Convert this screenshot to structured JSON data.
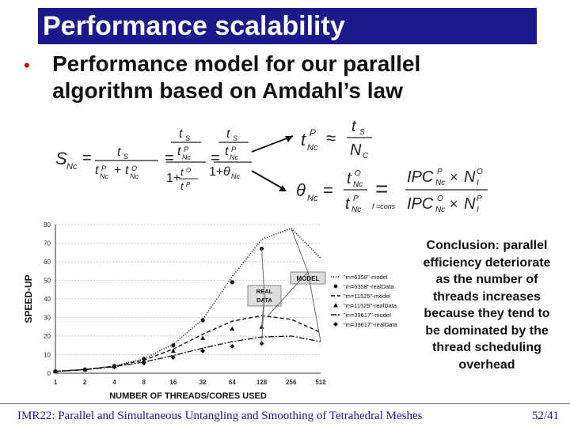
{
  "slide": {
    "title": "Performance scalability",
    "bullet": "Performance model for our parallel algorithm based on Amdahl’s law",
    "conclusion": "Conclusion: parallel efficiency deteriorate as the number of threads increases because they tend to be dominated by the thread scheduling overhead",
    "footer": "IMR22: Parallel and Simultaneous Untangling and Smoothing of Tetrahedral Meshes",
    "page": "52/41"
  },
  "colors": {
    "title_bg": "#1a1a8c",
    "bullet": "#cc0000",
    "footer": "#1a1a8c"
  },
  "chart_data": {
    "type": "line",
    "xlabel": "NUMBER OF THREADS/CORES USED",
    "ylabel": "SPEED-UP",
    "categories": [
      "1",
      "2",
      "4",
      "8",
      "16",
      "32",
      "64",
      "128",
      "256",
      "512"
    ],
    "ylim": [
      0,
      80
    ],
    "yticks": [
      "0",
      "10",
      "20",
      "30",
      "40",
      "50",
      "60",
      "70",
      "80"
    ],
    "grid": true,
    "legend_position": "right",
    "annotations": [
      "MODEL",
      "REAL DATA"
    ],
    "series": [
      {
        "name": "\"m=6358\"-model",
        "values": [
          1,
          2,
          3.9,
          7.8,
          15.5,
          29,
          52,
          72,
          78,
          62
        ]
      },
      {
        "name": "\"m=6358\"-realData",
        "values": [
          1,
          2,
          3.9,
          7.8,
          15,
          28.5,
          49,
          67,
          null,
          null
        ]
      },
      {
        "name": "\"m=11525\"-model",
        "values": [
          1,
          2,
          3.8,
          7,
          13,
          21,
          28,
          31,
          29,
          22
        ]
      },
      {
        "name": "\"m=11525\"-realData",
        "values": [
          1,
          2,
          3.8,
          6.8,
          12,
          19,
          24,
          25,
          null,
          null
        ]
      },
      {
        "name": "\"m=39617\"-model",
        "values": [
          1,
          1.9,
          3.5,
          6,
          9.5,
          13.5,
          17,
          19.5,
          20,
          17
        ]
      },
      {
        "name": "\"m=39617\"-realData",
        "values": [
          1,
          1.9,
          3.3,
          5.5,
          8.5,
          12,
          14.5,
          16,
          null,
          null
        ]
      }
    ]
  }
}
